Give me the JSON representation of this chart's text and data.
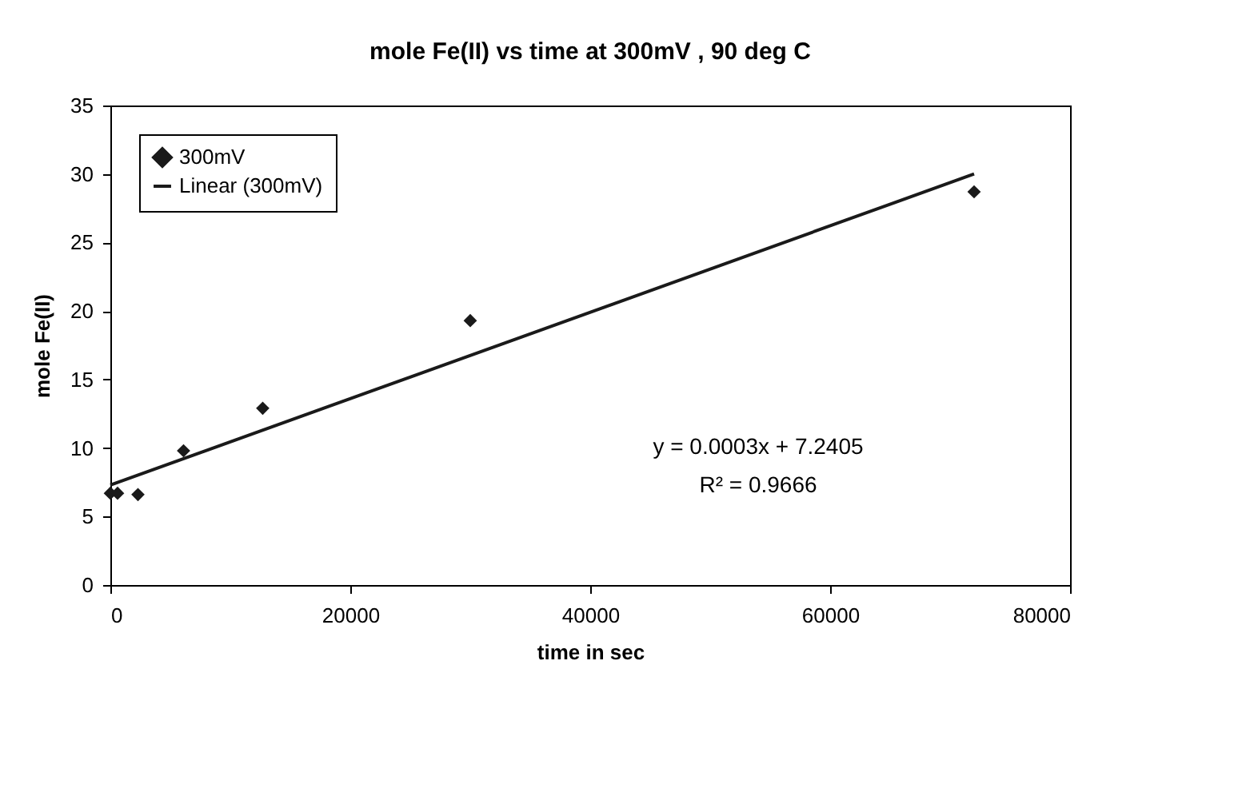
{
  "chart_data": {
    "type": "scatter",
    "title": "mole Fe(II) vs time at 300mV , 90 deg C",
    "xlabel": "time in sec",
    "ylabel": "mole Fe(II)",
    "series": [
      {
        "name": "300mV",
        "color": "#1a1a1a",
        "marker": "diamond",
        "x": [
          0,
          600,
          2300,
          6100,
          12700,
          30000,
          72000
        ],
        "values": [
          6.7,
          6.7,
          6.6,
          9.8,
          12.9,
          19.3,
          28.7
        ]
      },
      {
        "name": "Linear (300mV)",
        "type": "line",
        "color": "#1a1a1a",
        "line_style": "solid",
        "x": [
          0,
          72000
        ],
        "values": [
          7.3,
          30.0
        ]
      }
    ],
    "annotations": [
      "y = 0.0003x + 7.2405",
      "R² = 0.9666"
    ],
    "xlim": [
      0,
      80000
    ],
    "xticks": [
      0,
      20000,
      40000,
      60000,
      80000
    ],
    "ylim": [
      0,
      35
    ],
    "yticks": [
      0,
      5,
      10,
      15,
      20,
      25,
      30,
      35
    ],
    "grid": false,
    "legend": "top left"
  }
}
